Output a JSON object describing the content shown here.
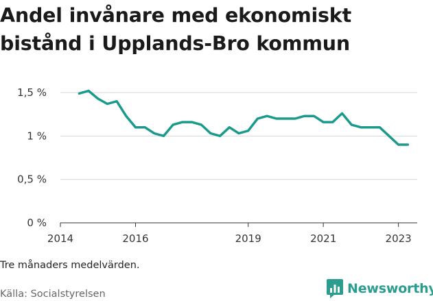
{
  "title_lines": [
    "Andel invånare med ekonomiskt",
    "bistånd i Upplands-Bro kommun"
  ],
  "note": "Tre månaders medelvärden.",
  "source": "Källa: Socialstyrelsen",
  "brand": {
    "name": "Newsworthy",
    "icon": "bar-chart-logo-icon",
    "color": "#2a9d8f"
  },
  "chart_data": {
    "type": "line",
    "title": "Andel invånare med ekonomiskt bistånd i Upplands-Bro kommun",
    "xlabel": "",
    "ylabel": "",
    "x_ticks": [
      "2014",
      "2016",
      "2019",
      "2021",
      "2023"
    ],
    "y_ticks": [
      "0 %",
      "0,5 %",
      "1 %",
      "1,5 %"
    ],
    "ylim": [
      0,
      1.5
    ],
    "xlim": [
      "2014-01",
      "2023-07"
    ],
    "grid": true,
    "line_color": "#1a9a8c",
    "series": [
      {
        "x": [
          "2014-07",
          "2014-10",
          "2015-01",
          "2015-04",
          "2015-07",
          "2015-10",
          "2016-01",
          "2016-04",
          "2016-07",
          "2016-10",
          "2017-01",
          "2017-04",
          "2017-07",
          "2017-10",
          "2018-01",
          "2018-04",
          "2018-07",
          "2018-10",
          "2019-01",
          "2019-04",
          "2019-07",
          "2019-10",
          "2020-01",
          "2020-04",
          "2020-07",
          "2020-10",
          "2021-01",
          "2021-04",
          "2021-07",
          "2021-10",
          "2022-01",
          "2022-04",
          "2022-07",
          "2022-10",
          "2023-01",
          "2023-04"
        ],
        "values": [
          1.49,
          1.52,
          1.43,
          1.37,
          1.4,
          1.23,
          1.1,
          1.1,
          1.03,
          1.0,
          1.13,
          1.16,
          1.16,
          1.13,
          1.03,
          1.0,
          1.1,
          1.03,
          1.06,
          1.2,
          1.23,
          1.2,
          1.2,
          1.2,
          1.23,
          1.23,
          1.16,
          1.16,
          1.26,
          1.13,
          1.1,
          1.1,
          1.1,
          1.0,
          0.9,
          0.9
        ]
      }
    ]
  }
}
